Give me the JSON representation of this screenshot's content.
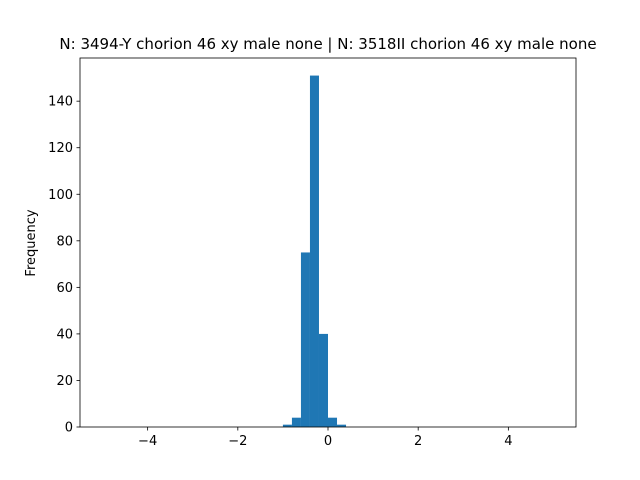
{
  "chart_data": {
    "type": "histogram",
    "title": "N: 3494-Y chorion 46 xy male none | N: 3518II chorion 46 xy male none",
    "y_label": "Frequency",
    "color": "#1f77b4",
    "bins": [
      -5,
      -4.8,
      -4.6,
      -4.4,
      -4.2,
      -4,
      -3.8,
      -3.6,
      -3.4,
      -3.2,
      -3,
      -2.8,
      -2.6,
      -2.4,
      -2.2,
      -2,
      -1.8,
      -1.6,
      -1.4,
      -1.2,
      -1,
      -0.8,
      -0.6,
      -0.4,
      -0.2,
      0,
      0.2,
      0.4,
      0.6,
      0.8,
      1,
      1.2,
      1.4,
      1.6,
      1.8,
      2,
      2.2,
      2.4,
      2.6,
      2.8,
      3,
      3.2,
      3.4,
      3.6,
      3.8,
      4,
      4.2,
      4.4,
      4.6,
      4.8,
      5
    ],
    "values": [
      0,
      0,
      0,
      0,
      0,
      0,
      0,
      0,
      0,
      0,
      0,
      0,
      0,
      0,
      0,
      0,
      0,
      0,
      0,
      0,
      1,
      4,
      75,
      151,
      40,
      4,
      1,
      0,
      0,
      0,
      0,
      0,
      0,
      0,
      0,
      0,
      0,
      0,
      0,
      0,
      0,
      0,
      0,
      0,
      0,
      0,
      0,
      0,
      0,
      0
    ],
    "xlim": [
      -5.5,
      5.5
    ],
    "ylim": [
      0,
      158.55
    ],
    "xticks": [
      {
        "value": -4,
        "label": "−4"
      },
      {
        "value": -2,
        "label": "−2"
      },
      0,
      2,
      4
    ],
    "yticks": [
      0,
      20,
      40,
      60,
      80,
      100,
      120,
      140
    ],
    "grid": false
  }
}
